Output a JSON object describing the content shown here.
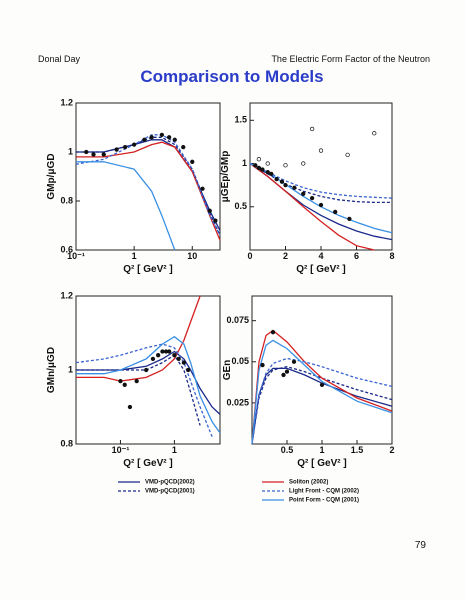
{
  "header": {
    "author": "Donal Day",
    "topic": "The Electric Form Factor of the Neutron"
  },
  "title": "Comparison to Models",
  "page_number": "79",
  "legend": [
    {
      "name": "VMD-pQCD(2002)",
      "color": "#1a2a8a",
      "dash": false
    },
    {
      "name": "VMD-pQCD(2001)",
      "color": "#1a2a8a",
      "dash": true
    },
    {
      "name": "Soliton (2002)",
      "color": "#d42020",
      "dash": false
    },
    {
      "name": "Light Front - CQM (2002)",
      "color": "#3a64d0",
      "dash": true
    },
    {
      "name": "Point Form - CQM (2001)",
      "color": "#3a90e4",
      "dash": false
    }
  ],
  "chart_data": [
    {
      "type": "line",
      "ylabel": "GMp/μGD",
      "xlabel": "Q² [ GeV² ]",
      "xscale": "log",
      "xlim": [
        0.1,
        30
      ],
      "ylim": [
        0.6,
        1.2
      ],
      "xticks": [
        {
          "value": 0.1,
          "label": "10⁻¹"
        },
        1,
        10
      ],
      "yticks": [
        0.6,
        0.8,
        1,
        1.2
      ],
      "series": [
        {
          "color": "#1a2a8a",
          "dash": false,
          "x": [
            0.1,
            0.3,
            1,
            2,
            3,
            5,
            10,
            20,
            30
          ],
          "values": [
            1.0,
            1.0,
            1.03,
            1.05,
            1.05,
            1.02,
            0.92,
            0.76,
            0.68
          ]
        },
        {
          "color": "#1a2a8a",
          "dash": true,
          "x": [
            0.1,
            0.3,
            1,
            2,
            3,
            5,
            10,
            20,
            30
          ],
          "values": [
            1.0,
            1.0,
            1.03,
            1.06,
            1.06,
            1.03,
            0.93,
            0.75,
            0.66
          ]
        },
        {
          "color": "#d42020",
          "dash": false,
          "x": [
            0.1,
            0.3,
            1,
            2,
            3,
            5,
            10,
            20,
            30
          ],
          "values": [
            0.98,
            0.98,
            1.0,
            1.03,
            1.04,
            1.02,
            0.92,
            0.74,
            0.64
          ]
        },
        {
          "color": "#3a64d0",
          "dash": true,
          "x": [
            0.1,
            0.3,
            1,
            2,
            3,
            5,
            10,
            20,
            30
          ],
          "values": [
            0.95,
            0.97,
            1.03,
            1.07,
            1.07,
            1.04,
            0.93,
            0.74,
            0.66
          ]
        },
        {
          "color": "#3a90e4",
          "dash": false,
          "x": [
            0.1,
            0.3,
            1,
            2,
            3,
            5
          ],
          "values": [
            0.96,
            0.96,
            0.93,
            0.84,
            0.74,
            0.6
          ]
        }
      ],
      "points": {
        "x": [
          0.15,
          0.2,
          0.3,
          0.5,
          0.7,
          1,
          1.5,
          2,
          3,
          4,
          5,
          7,
          10,
          15,
          20,
          25
        ],
        "values": [
          1.0,
          0.99,
          0.99,
          1.01,
          1.02,
          1.03,
          1.05,
          1.06,
          1.07,
          1.06,
          1.05,
          1.02,
          0.96,
          0.85,
          0.76,
          0.72
        ]
      }
    },
    {
      "type": "line",
      "ylabel": "μGEp/GMp",
      "xlabel": "Q² [ GeV² ]",
      "xlim": [
        0,
        8
      ],
      "ylim": [
        0,
        1.7
      ],
      "xticks": [
        0,
        2,
        4,
        6,
        8
      ],
      "yticks": [
        0.5,
        1,
        1.5
      ],
      "series": [
        {
          "color": "#1a2a8a",
          "dash": false,
          "x": [
            0,
            1,
            2,
            3,
            4,
            5,
            6,
            7,
            8
          ],
          "values": [
            1,
            0.85,
            0.68,
            0.52,
            0.4,
            0.3,
            0.22,
            0.16,
            0.12
          ]
        },
        {
          "color": "#1a2a8a",
          "dash": true,
          "x": [
            0,
            1,
            2,
            3,
            4,
            5,
            6,
            7,
            8
          ],
          "values": [
            1,
            0.88,
            0.76,
            0.68,
            0.62,
            0.58,
            0.56,
            0.55,
            0.55
          ]
        },
        {
          "color": "#d42020",
          "dash": false,
          "x": [
            0,
            1,
            2,
            3,
            4,
            5,
            6,
            7,
            8
          ],
          "values": [
            1,
            0.85,
            0.68,
            0.5,
            0.33,
            0.17,
            0.05,
            0.0,
            null
          ]
        },
        {
          "color": "#3a64d0",
          "dash": true,
          "x": [
            0,
            1,
            2,
            3,
            4,
            5,
            6,
            7,
            8
          ],
          "values": [
            1,
            0.9,
            0.8,
            0.72,
            0.67,
            0.64,
            0.62,
            0.61,
            0.6
          ]
        },
        {
          "color": "#3a90e4",
          "dash": false,
          "x": [
            0,
            1,
            2,
            3,
            4,
            5,
            6,
            7,
            8
          ],
          "values": [
            1,
            0.9,
            0.76,
            0.62,
            0.5,
            0.4,
            0.32,
            0.25,
            0.2
          ]
        }
      ],
      "points": {
        "x": [
          0.3,
          0.5,
          0.7,
          1,
          1.2,
          1.5,
          1.8,
          2,
          2.5,
          3,
          3.5,
          4,
          4.8,
          5.6
        ],
        "values": [
          0.98,
          0.95,
          0.93,
          0.9,
          0.88,
          0.82,
          0.79,
          0.75,
          0.72,
          0.65,
          0.6,
          0.52,
          0.44,
          0.36
        ]
      },
      "open_points": {
        "x": [
          0.5,
          1,
          2,
          3,
          3.5,
          4,
          5.5,
          7
        ],
        "values": [
          1.05,
          1.0,
          0.98,
          1.0,
          1.4,
          1.15,
          1.1,
          1.35
        ]
      }
    },
    {
      "type": "line",
      "ylabel": "GMn/μGD",
      "xlabel": "Q² [ GeV² ]",
      "xscale": "log",
      "xlim": [
        0.015,
        7
      ],
      "ylim": [
        0.8,
        1.2
      ],
      "xticks": [
        {
          "value": 0.1,
          "label": "10⁻¹"
        },
        1
      ],
      "yticks": [
        0.8,
        1,
        1.2
      ],
      "series": [
        {
          "color": "#1a2a8a",
          "dash": false,
          "x": [
            0.015,
            0.05,
            0.1,
            0.3,
            0.6,
            1,
            1.5,
            2,
            3,
            5,
            7
          ],
          "values": [
            1.0,
            1.0,
            1.0,
            1.01,
            1.03,
            1.05,
            1.03,
            1.0,
            0.95,
            0.9,
            0.88
          ]
        },
        {
          "color": "#1a2a8a",
          "dash": true,
          "x": [
            0.015,
            0.05,
            0.1,
            0.3,
            0.6,
            1,
            1.5,
            2,
            3,
            5,
            7
          ],
          "values": [
            1.0,
            1.0,
            1.0,
            1.0,
            1.02,
            1.04,
            1.0,
            0.94,
            0.85,
            null,
            null
          ]
        },
        {
          "color": "#d42020",
          "dash": false,
          "x": [
            0.015,
            0.05,
            0.1,
            0.3,
            0.6,
            1,
            1.5,
            2,
            3,
            5,
            7
          ],
          "values": [
            0.98,
            0.98,
            0.97,
            0.98,
            1.0,
            1.03,
            1.08,
            1.13,
            1.2,
            null,
            null
          ]
        },
        {
          "color": "#3a64d0",
          "dash": true,
          "x": [
            0.015,
            0.05,
            0.1,
            0.3,
            0.6,
            1,
            1.5,
            2,
            3,
            5,
            7
          ],
          "values": [
            1.02,
            1.03,
            1.04,
            1.06,
            1.07,
            1.06,
            1.02,
            0.97,
            0.9,
            0.82,
            null
          ]
        },
        {
          "color": "#3a90e4",
          "dash": false,
          "x": [
            0.015,
            0.05,
            0.1,
            0.3,
            0.6,
            1,
            1.5,
            2,
            3,
            5,
            7
          ],
          "values": [
            0.99,
            0.99,
            1.0,
            1.03,
            1.07,
            1.09,
            1.07,
            1.02,
            0.93,
            0.86,
            0.83
          ]
        }
      ],
      "points": {
        "x": [
          0.1,
          0.12,
          0.15,
          0.2,
          0.3,
          0.4,
          0.5,
          0.6,
          0.7,
          0.8,
          1,
          1.2,
          1.5,
          1.8
        ],
        "values": [
          0.97,
          0.96,
          0.9,
          0.97,
          1.0,
          1.03,
          1.04,
          1.05,
          1.05,
          1.05,
          1.04,
          1.03,
          1.02,
          1.0
        ]
      }
    },
    {
      "type": "line",
      "ylabel": "GEn",
      "xlabel": "Q² [ GeV² ]",
      "xlim": [
        0,
        2
      ],
      "ylim": [
        0,
        0.09
      ],
      "xticks": [
        0.5,
        1,
        1.5,
        2
      ],
      "yticks": [
        0.025,
        0.05,
        0.075
      ],
      "series": [
        {
          "color": "#1a2a8a",
          "dash": false,
          "x": [
            0,
            0.1,
            0.2,
            0.3,
            0.5,
            0.75,
            1,
            1.5,
            2
          ],
          "values": [
            0,
            0.03,
            0.042,
            0.046,
            0.046,
            0.042,
            0.037,
            0.029,
            0.023
          ]
        },
        {
          "color": "#1a2a8a",
          "dash": true,
          "x": [
            0,
            0.1,
            0.2,
            0.3,
            0.5,
            0.75,
            1,
            1.5,
            2
          ],
          "values": [
            0,
            0.028,
            0.04,
            0.045,
            0.047,
            0.044,
            0.04,
            0.033,
            0.027
          ]
        },
        {
          "color": "#d42020",
          "dash": false,
          "x": [
            0,
            0.1,
            0.2,
            0.3,
            0.5,
            0.75,
            1,
            1.5,
            2
          ],
          "values": [
            0,
            0.05,
            0.066,
            0.069,
            0.062,
            0.05,
            0.04,
            0.028,
            0.02
          ]
        },
        {
          "color": "#3a64d0",
          "dash": true,
          "x": [
            0,
            0.1,
            0.2,
            0.3,
            0.5,
            0.75,
            1,
            1.5,
            2
          ],
          "values": [
            0,
            0.03,
            0.043,
            0.049,
            0.052,
            0.05,
            0.047,
            0.04,
            0.035
          ]
        },
        {
          "color": "#3a90e4",
          "dash": false,
          "x": [
            0,
            0.1,
            0.2,
            0.3,
            0.5,
            0.75,
            1,
            1.5,
            2
          ],
          "values": [
            0,
            0.045,
            0.06,
            0.063,
            0.058,
            0.048,
            0.038,
            0.026,
            0.019
          ]
        }
      ],
      "points": {
        "x": [
          0.15,
          0.3,
          0.45,
          0.5,
          0.6,
          1.0
        ],
        "values": [
          0.048,
          0.068,
          0.042,
          0.044,
          0.05,
          0.036
        ]
      }
    }
  ]
}
